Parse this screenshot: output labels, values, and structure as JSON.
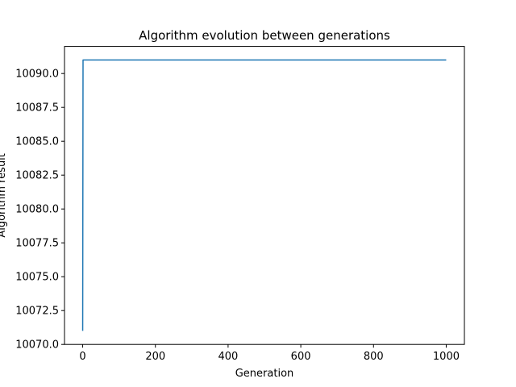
{
  "chart_data": {
    "type": "line",
    "title": "Algorithm evolution between generations",
    "xlabel": "Generation",
    "ylabel": "Algorithm result",
    "xlim": [
      -50,
      1050
    ],
    "ylim": [
      10070.0,
      10092.0
    ],
    "xticks": [
      0,
      200,
      400,
      600,
      800,
      1000
    ],
    "xtick_labels": [
      "0",
      "200",
      "400",
      "600",
      "800",
      "1000"
    ],
    "yticks": [
      10070.0,
      10072.5,
      10075.0,
      10077.5,
      10080.0,
      10082.5,
      10085.0,
      10087.5,
      10090.0
    ],
    "ytick_labels": [
      "10070.0",
      "10072.5",
      "10075.0",
      "10077.5",
      "10080.0",
      "10082.5",
      "10085.0",
      "10087.5",
      "10090.0"
    ],
    "grid": false,
    "legend": "none",
    "series": [
      {
        "color": "#1f77b4",
        "x": [
          0,
          1,
          1000
        ],
        "y": [
          10071,
          10091,
          10091
        ]
      }
    ]
  }
}
